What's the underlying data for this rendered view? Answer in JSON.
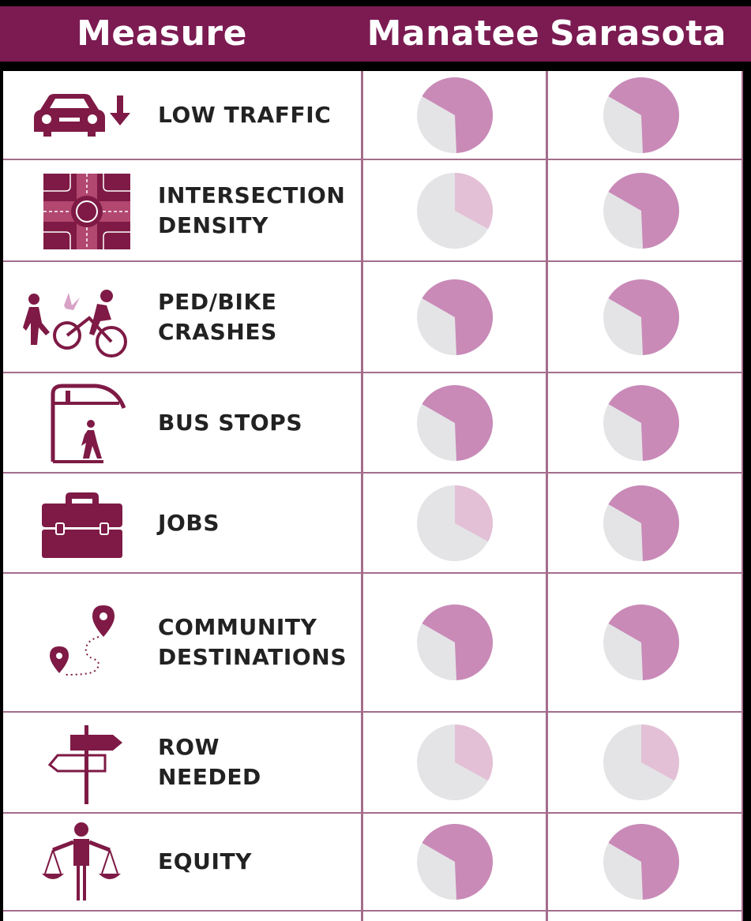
{
  "header": {
    "measure": "Measure",
    "manatee": "Manatee",
    "sarasota": "Sarasota"
  },
  "colors": {
    "header_bg": "#7b1b52",
    "icon": "#7e1a45",
    "pie_strong": "#c98ab8",
    "pie_light": "#e3c0d6",
    "pie_empty": "#e4e4e6",
    "grid": "#a46d8c"
  },
  "rows": [
    {
      "icon": "car-low-traffic-icon",
      "label_lines": [
        "LOW TRAFFIC"
      ],
      "manatee": {
        "level": "high",
        "fraction": 0.66
      },
      "sarasota": {
        "level": "high",
        "fraction": 0.66
      }
    },
    {
      "icon": "intersection-density-icon",
      "label_lines": [
        "INTERSECTION",
        "DENSITY"
      ],
      "manatee": {
        "level": "low",
        "fraction": 0.33
      },
      "sarasota": {
        "level": "high",
        "fraction": 0.66
      }
    },
    {
      "icon": "ped-bike-crash-icon",
      "label_lines": [
        "PED/BIKE",
        "CRASHES"
      ],
      "manatee": {
        "level": "high",
        "fraction": 0.66
      },
      "sarasota": {
        "level": "high",
        "fraction": 0.66
      }
    },
    {
      "icon": "bus-stop-icon",
      "label_lines": [
        "BUS STOPS"
      ],
      "manatee": {
        "level": "high",
        "fraction": 0.66
      },
      "sarasota": {
        "level": "high",
        "fraction": 0.66
      }
    },
    {
      "icon": "briefcase-icon",
      "label_lines": [
        "JOBS"
      ],
      "manatee": {
        "level": "low",
        "fraction": 0.33
      },
      "sarasota": {
        "level": "high",
        "fraction": 0.66
      }
    },
    {
      "icon": "map-route-icon",
      "label_lines": [
        "COMMUNITY",
        "DESTINATIONS"
      ],
      "manatee": {
        "level": "high",
        "fraction": 0.66
      },
      "sarasota": {
        "level": "high",
        "fraction": 0.66
      }
    },
    {
      "icon": "signpost-icon",
      "label_lines": [
        "ROW",
        "NEEDED"
      ],
      "manatee": {
        "level": "low",
        "fraction": 0.33
      },
      "sarasota": {
        "level": "low",
        "fraction": 0.33
      }
    },
    {
      "icon": "equity-scales-icon",
      "label_lines": [
        "EQUITY"
      ],
      "manatee": {
        "level": "high",
        "fraction": 0.66
      },
      "sarasota": {
        "level": "high",
        "fraction": 0.66
      }
    }
  ]
}
